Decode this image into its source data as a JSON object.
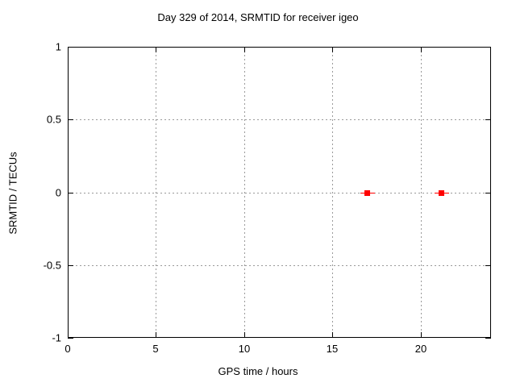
{
  "chart_data": {
    "type": "scatter",
    "title": "Day 329 of 2014, SRMTID for receiver igeo",
    "xlabel": "GPS time / hours",
    "ylabel": "SRMTID / TECUs",
    "xlim": [
      0,
      24
    ],
    "ylim": [
      -1,
      1
    ],
    "xticks": [
      0,
      5,
      10,
      15,
      20
    ],
    "yticks": [
      1,
      0.5,
      0,
      -0.5,
      -1
    ],
    "grid": true,
    "legend": "none",
    "series": [
      {
        "name": "SRMTID",
        "marker": "filled-square-with-xerrorbar",
        "color": "#ff0000",
        "points": [
          {
            "x": 17.0,
            "y": 0.0,
            "xerr": 0.4
          },
          {
            "x": 21.2,
            "y": 0.0,
            "xerr": 0.4
          }
        ]
      }
    ],
    "colors": {
      "background": "#ffffff",
      "axis": "#000000",
      "grid": "#9a9a9a",
      "text": "#000000",
      "marker": "#ff0000"
    }
  }
}
